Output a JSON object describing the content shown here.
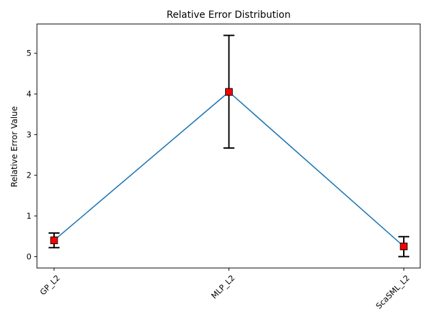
{
  "chart_data": {
    "type": "line",
    "title": "Relative Error Distribution",
    "xlabel": "",
    "ylabel": "Relative Error Value",
    "categories": [
      "GP_L2",
      "MLP_L2",
      "ScaSML_L2"
    ],
    "series": [
      {
        "values": [
          0.4,
          4.05,
          0.25
        ],
        "error_low": [
          0.22,
          2.67,
          0.0
        ],
        "error_high": [
          0.58,
          5.44,
          0.49
        ]
      }
    ],
    "yticks": [
      "0",
      "1",
      "2",
      "3",
      "4",
      "5"
    ],
    "ylim": [
      -0.28,
      5.72
    ],
    "grid": false,
    "line_color": "#1f77b4",
    "marker_color": "#ff0000",
    "errorbar_color": "#000000"
  }
}
